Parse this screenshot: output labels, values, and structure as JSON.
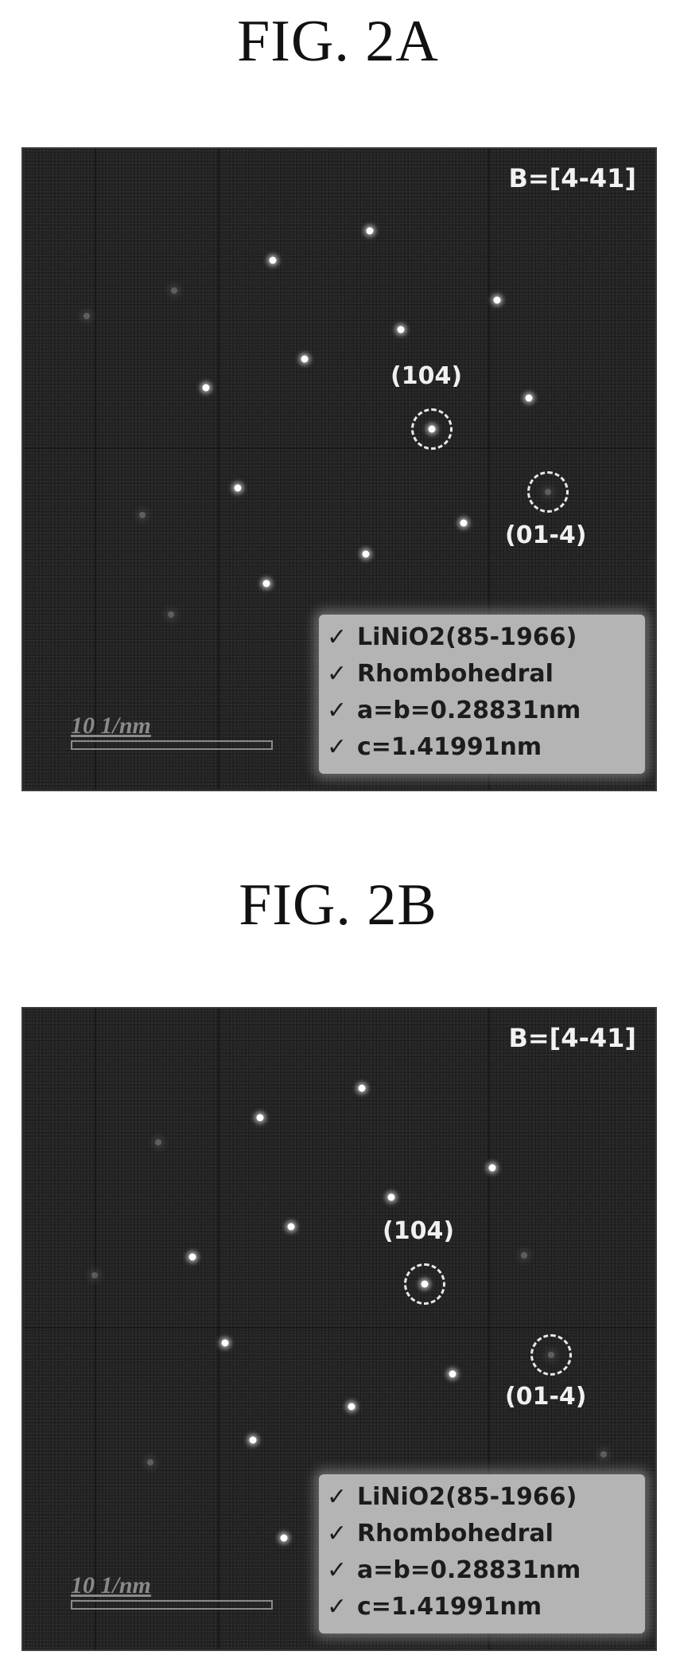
{
  "figures": [
    {
      "title": "FIG. 2A",
      "beam_direction": "B=[4-41]",
      "spot_labels": [
        "(104)",
        "(01-4)"
      ],
      "info_lines": [
        "LiNiO2(85-1966)",
        "Rhombohedral",
        "a=b=0.28831nm",
        "c=1.41991nm"
      ],
      "check_mark": "✓",
      "scale_bar_label": "10 1/nm"
    },
    {
      "title": "FIG. 2B",
      "beam_direction": "B=[4-41]",
      "spot_labels": [
        "(104)",
        "(01-4)"
      ],
      "info_lines": [
        "LiNiO2(85-1966)",
        "Rhombohedral",
        "a=b=0.28831nm",
        "c=1.41991nm"
      ],
      "check_mark": "✓",
      "scale_bar_label": "10 1/nm"
    }
  ]
}
